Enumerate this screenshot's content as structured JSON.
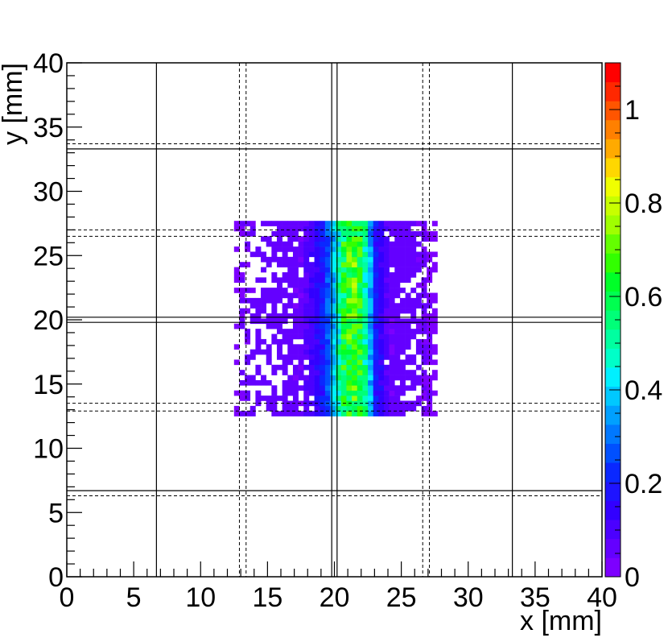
{
  "chart_data": {
    "type": "heatmap",
    "title": "",
    "xlabel": "x [mm]",
    "ylabel": "y [mm]",
    "xlim": [
      0,
      40
    ],
    "ylim": [
      0,
      40
    ],
    "x_ticks": [
      "0",
      "5",
      "10",
      "15",
      "20",
      "25",
      "30",
      "35",
      "40"
    ],
    "y_ticks": [
      "0",
      "5",
      "10",
      "15",
      "20",
      "25",
      "30",
      "35",
      "40"
    ],
    "colorbar": {
      "range": [
        0,
        1.1
      ],
      "ticks": [
        "0",
        "0.2",
        "0.4",
        "0.6",
        "0.8",
        "1"
      ],
      "palette": [
        "#7d00ff",
        "#6400ff",
        "#4b00ff",
        "#3200ff",
        "#1e14ff",
        "#0a28ff",
        "#0050ff",
        "#0078ff",
        "#00a0ff",
        "#00c8ff",
        "#00f0ff",
        "#00ffc8",
        "#00ffa0",
        "#00ff78",
        "#00ff50",
        "#00ff28",
        "#32ff00",
        "#64ff00",
        "#a0ff00",
        "#c8ff00",
        "#f0ff00",
        "#ffd700",
        "#ffaa00",
        "#ff8000",
        "#ff5500",
        "#ff2800",
        "#ff0000"
      ]
    },
    "hit_region": {
      "x": [
        12.5,
        27.5
      ],
      "y": [
        12.5,
        27.5
      ]
    },
    "column_profile_description_values": {
      "x": [
        12.5,
        13,
        14,
        15,
        16,
        17,
        18,
        18.5,
        19,
        19.5,
        20,
        20.5,
        21,
        21.5,
        22,
        22.5,
        23,
        24,
        25,
        26,
        27,
        27.5
      ],
      "mean_efficiency": [
        0.03,
        0.04,
        0.05,
        0.06,
        0.06,
        0.07,
        0.09,
        0.12,
        0.18,
        0.26,
        0.4,
        0.55,
        0.65,
        0.66,
        0.6,
        0.45,
        0.2,
        0.08,
        0.06,
        0.05,
        0.04,
        0.03
      ]
    }
  }
}
